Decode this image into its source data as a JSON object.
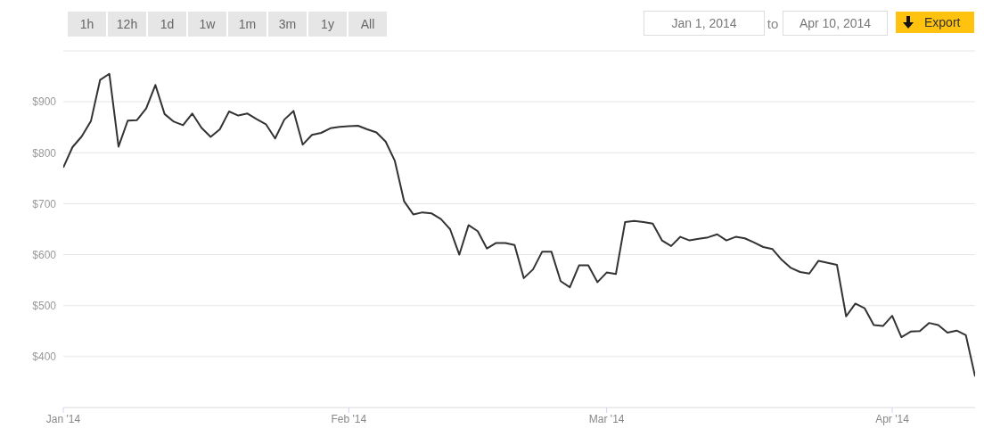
{
  "chart_data": {
    "type": "line",
    "annotations": [
      "1h",
      "12h",
      "1d",
      "1w",
      "1m",
      "3m",
      "1y",
      "All",
      "Jan 1, 2014",
      "to",
      "Apr 10, 2014",
      "Export"
    ],
    "x": [
      "2014-01-01",
      "2014-01-02",
      "2014-01-03",
      "2014-01-04",
      "2014-01-05",
      "2014-01-06",
      "2014-01-07",
      "2014-01-08",
      "2014-01-09",
      "2014-01-10",
      "2014-01-11",
      "2014-01-12",
      "2014-01-13",
      "2014-01-14",
      "2014-01-15",
      "2014-01-16",
      "2014-01-17",
      "2014-01-18",
      "2014-01-19",
      "2014-01-20",
      "2014-01-21",
      "2014-01-22",
      "2014-01-23",
      "2014-01-24",
      "2014-01-25",
      "2014-01-26",
      "2014-01-27",
      "2014-01-28",
      "2014-01-29",
      "2014-01-30",
      "2014-01-31",
      "2014-02-01",
      "2014-02-02",
      "2014-02-03",
      "2014-02-04",
      "2014-02-05",
      "2014-02-06",
      "2014-02-07",
      "2014-02-08",
      "2014-02-09",
      "2014-02-10",
      "2014-02-11",
      "2014-02-12",
      "2014-02-13",
      "2014-02-14",
      "2014-02-15",
      "2014-02-16",
      "2014-02-17",
      "2014-02-18",
      "2014-02-19",
      "2014-02-20",
      "2014-02-21",
      "2014-02-22",
      "2014-02-23",
      "2014-02-24",
      "2014-02-25",
      "2014-02-26",
      "2014-02-27",
      "2014-02-28",
      "2014-03-01",
      "2014-03-02",
      "2014-03-03",
      "2014-03-04",
      "2014-03-05",
      "2014-03-06",
      "2014-03-07",
      "2014-03-08",
      "2014-03-09",
      "2014-03-10",
      "2014-03-11",
      "2014-03-12",
      "2014-03-13",
      "2014-03-14",
      "2014-03-15",
      "2014-03-16",
      "2014-03-17",
      "2014-03-18",
      "2014-03-19",
      "2014-03-20",
      "2014-03-21",
      "2014-03-22",
      "2014-03-23",
      "2014-03-24",
      "2014-03-25",
      "2014-03-26",
      "2014-03-27",
      "2014-03-28",
      "2014-03-29",
      "2014-03-30",
      "2014-03-31",
      "2014-04-01",
      "2014-04-02",
      "2014-04-03",
      "2014-04-04",
      "2014-04-05",
      "2014-04-06",
      "2014-04-07",
      "2014-04-08",
      "2014-04-09",
      "2014-04-10"
    ],
    "series": [
      {
        "color": "#333333",
        "values": [
          771,
          811,
          832,
          862,
          943,
          955,
          812,
          863,
          864,
          887,
          933,
          876,
          861,
          854,
          877,
          849,
          831,
          846,
          881,
          873,
          877,
          866,
          856,
          828,
          865,
          882,
          816,
          835,
          839,
          848,
          851,
          852,
          853,
          846,
          840,
          822,
          784,
          705,
          679,
          683,
          681,
          670,
          650,
          600,
          658,
          646,
          612,
          623,
          623,
          619,
          554,
          571,
          606,
          606,
          548,
          536,
          579,
          579,
          546,
          565,
          562,
          664,
          666,
          664,
          661,
          628,
          617,
          635,
          628,
          631,
          634,
          640,
          628,
          635,
          632,
          624,
          615,
          611,
          590,
          574,
          566,
          563,
          588,
          584,
          580,
          479,
          504,
          495,
          462,
          460,
          480,
          438,
          449,
          450,
          466,
          462,
          447,
          451,
          442,
          361
        ]
      }
    ],
    "xlim": [
      "2014-01-01",
      "2014-04-10"
    ],
    "xticks": [
      {
        "value": "2014-01-01",
        "label": "Jan '14"
      },
      {
        "value": "2014-02-01",
        "label": "Feb '14"
      },
      {
        "value": "2014-03-01",
        "label": "Mar '14"
      },
      {
        "value": "2014-04-01",
        "label": "Apr '14"
      }
    ],
    "ylim": [
      300,
      1000
    ],
    "yticks": [
      {
        "value": 300,
        "label": null
      },
      {
        "value": 400,
        "label": "$400"
      },
      {
        "value": 500,
        "label": "$500"
      },
      {
        "value": 600,
        "label": "$600"
      },
      {
        "value": 700,
        "label": "$700"
      },
      {
        "value": 800,
        "label": "$800"
      },
      {
        "value": 900,
        "label": "$900"
      },
      {
        "value": 1000,
        "label": null
      }
    ],
    "grid": "y",
    "legend": false,
    "marker": "none",
    "line_style": "solid"
  }
}
